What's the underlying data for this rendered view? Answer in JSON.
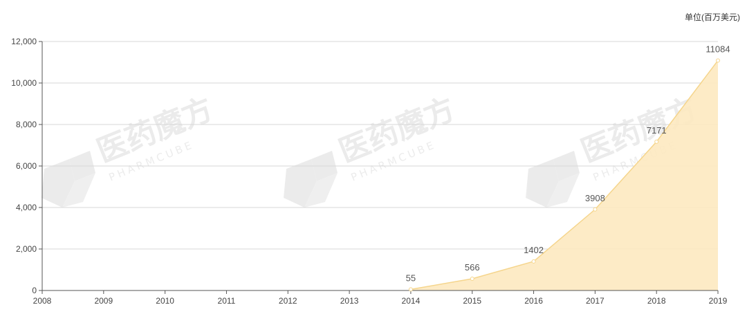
{
  "chart_data": {
    "type": "area",
    "unit_label": "单位(百万美元)",
    "x": [
      "2008",
      "2009",
      "2010",
      "2011",
      "2012",
      "2013",
      "2014",
      "2015",
      "2016",
      "2017",
      "2018",
      "2019"
    ],
    "y_ticks": [
      "0",
      "2,000",
      "4,000",
      "6,000",
      "8,000",
      "10,000",
      "12,000"
    ],
    "ylim": [
      0,
      12000
    ],
    "grid": true,
    "series": [
      {
        "x": [
          "2014",
          "2015",
          "2016",
          "2017",
          "2018",
          "2019"
        ],
        "values": [
          55,
          566,
          1402,
          3908,
          7171,
          11084
        ],
        "value_labels": [
          "55",
          "566",
          "1402",
          "3908",
          "7171",
          "11084"
        ]
      }
    ],
    "colors": {
      "area": "#fde9c0",
      "line": "#f5d58c",
      "grid": "#d7d7d7",
      "axis": "#555555"
    }
  },
  "watermark": {
    "brand_cn": "医药魔方",
    "brand_en": "PHARMCUBE"
  }
}
